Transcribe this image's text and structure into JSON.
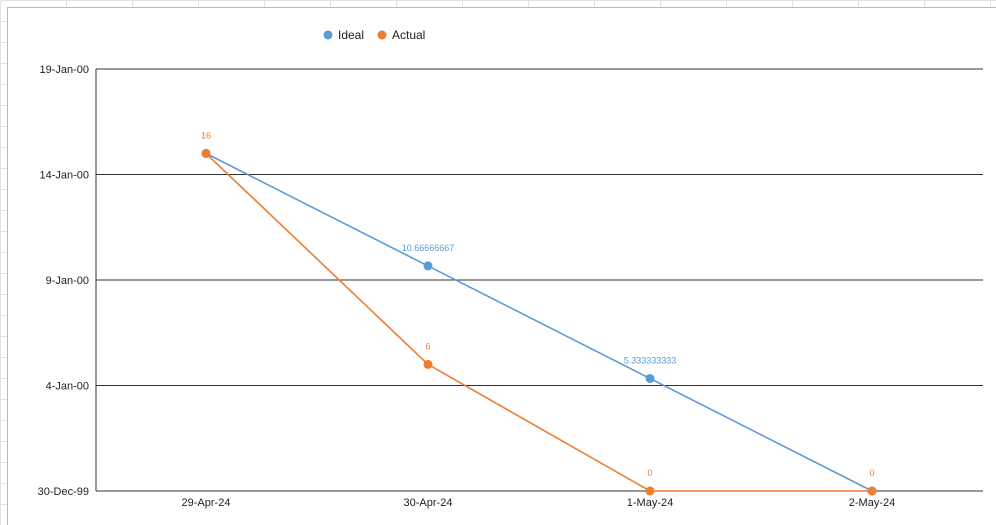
{
  "chart_data": {
    "type": "line",
    "title": "",
    "xlabel": "",
    "ylabel": "",
    "categories": [
      "29-Apr-24",
      "30-Apr-24",
      "1-May-24",
      "2-May-24"
    ],
    "y_tick_labels": [
      "30-Dec-99",
      "4-Jan-00",
      "9-Jan-00",
      "14-Jan-00",
      "19-Jan-00"
    ],
    "ylim": [
      0,
      20
    ],
    "y_tick_values": [
      0,
      5,
      10,
      15,
      20
    ],
    "grid": true,
    "legend_position": "top",
    "series": [
      {
        "name": "Ideal",
        "color": "#5b9bd5",
        "values": [
          16,
          10.66666667,
          5.333333333,
          0
        ],
        "labels": [
          "",
          "10.66666667",
          "5.333333333",
          ""
        ]
      },
      {
        "name": "Actual",
        "color": "#ed7d31",
        "values": [
          16,
          6,
          0,
          0
        ],
        "labels": [
          "16",
          "6",
          "0",
          "0"
        ]
      }
    ]
  }
}
